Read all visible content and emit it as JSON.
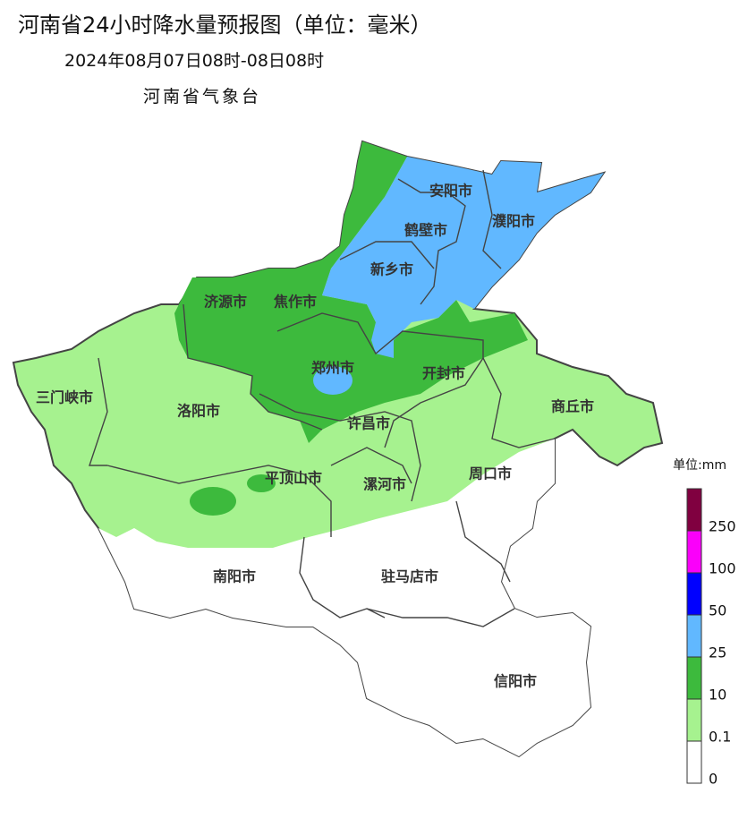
{
  "header": {
    "title": "河南省24小时降水量预报图（单位：毫米）",
    "subtitle": "2024年08月07日08时-08日08时",
    "agency": "河南省气象台"
  },
  "cities": [
    "安阳市",
    "濮阳市",
    "鹤壁市",
    "新乡市",
    "济源市",
    "焦作市",
    "郑州市",
    "开封市",
    "三门峡市",
    "洛阳市",
    "商丘市",
    "许昌市",
    "平顶山市",
    "漯河市",
    "周口市",
    "南阳市",
    "驻马店市",
    "信阳市"
  ],
  "legend": {
    "title": "单位:mm",
    "colors": [
      "#ffffff",
      "#a6f28f",
      "#3dba3d",
      "#61b8ff",
      "#0000fe",
      "#fa00fa",
      "#800040"
    ],
    "ticks": [
      0,
      0.1,
      10,
      25,
      50,
      100,
      250
    ]
  }
}
